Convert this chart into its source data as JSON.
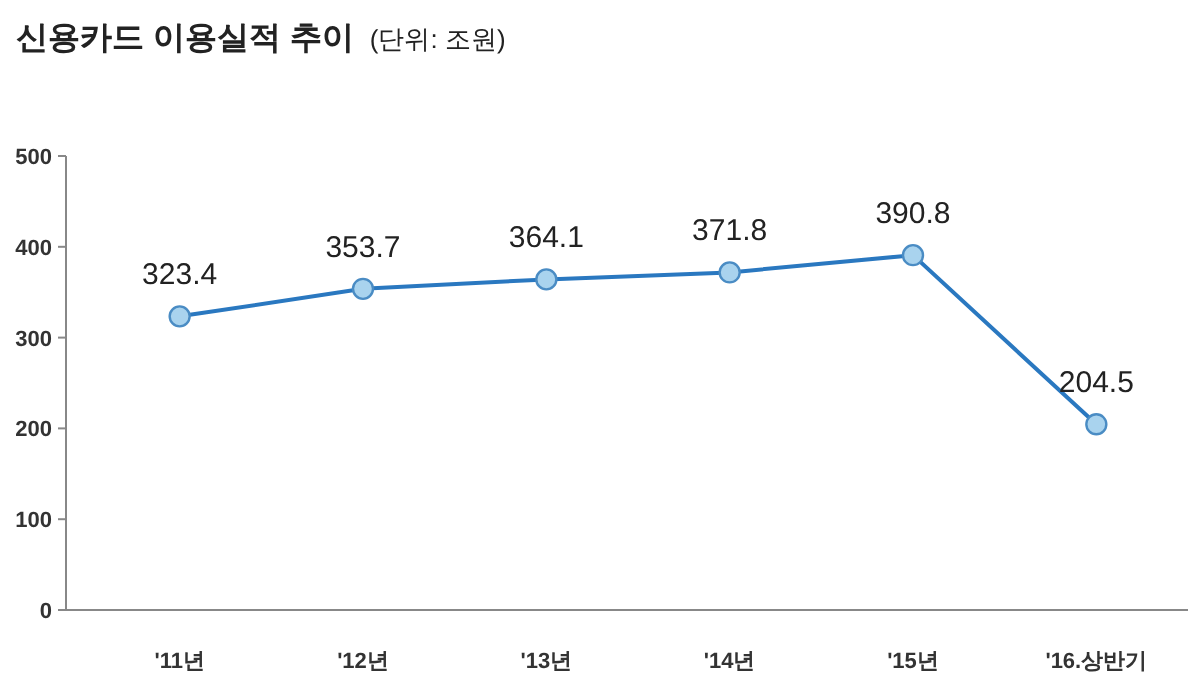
{
  "chart_data": {
    "type": "line",
    "title": "신용카드 이용실적 추이",
    "subtitle": "(단위: 조원)",
    "categories": [
      "'11년",
      "'12년",
      "'13년",
      "'14년",
      "'15년",
      "'16.상반기"
    ],
    "series": [
      {
        "color": "#2a78c0",
        "values": [
          323.4,
          353.7,
          364.1,
          371.8,
          390.8,
          204.5
        ]
      }
    ],
    "ylim": [
      0,
      500
    ],
    "yticks": [
      0,
      100,
      200,
      300,
      400,
      500
    ],
    "grid": false,
    "marker": "circle",
    "line_style": "solid",
    "data_labels": true
  }
}
